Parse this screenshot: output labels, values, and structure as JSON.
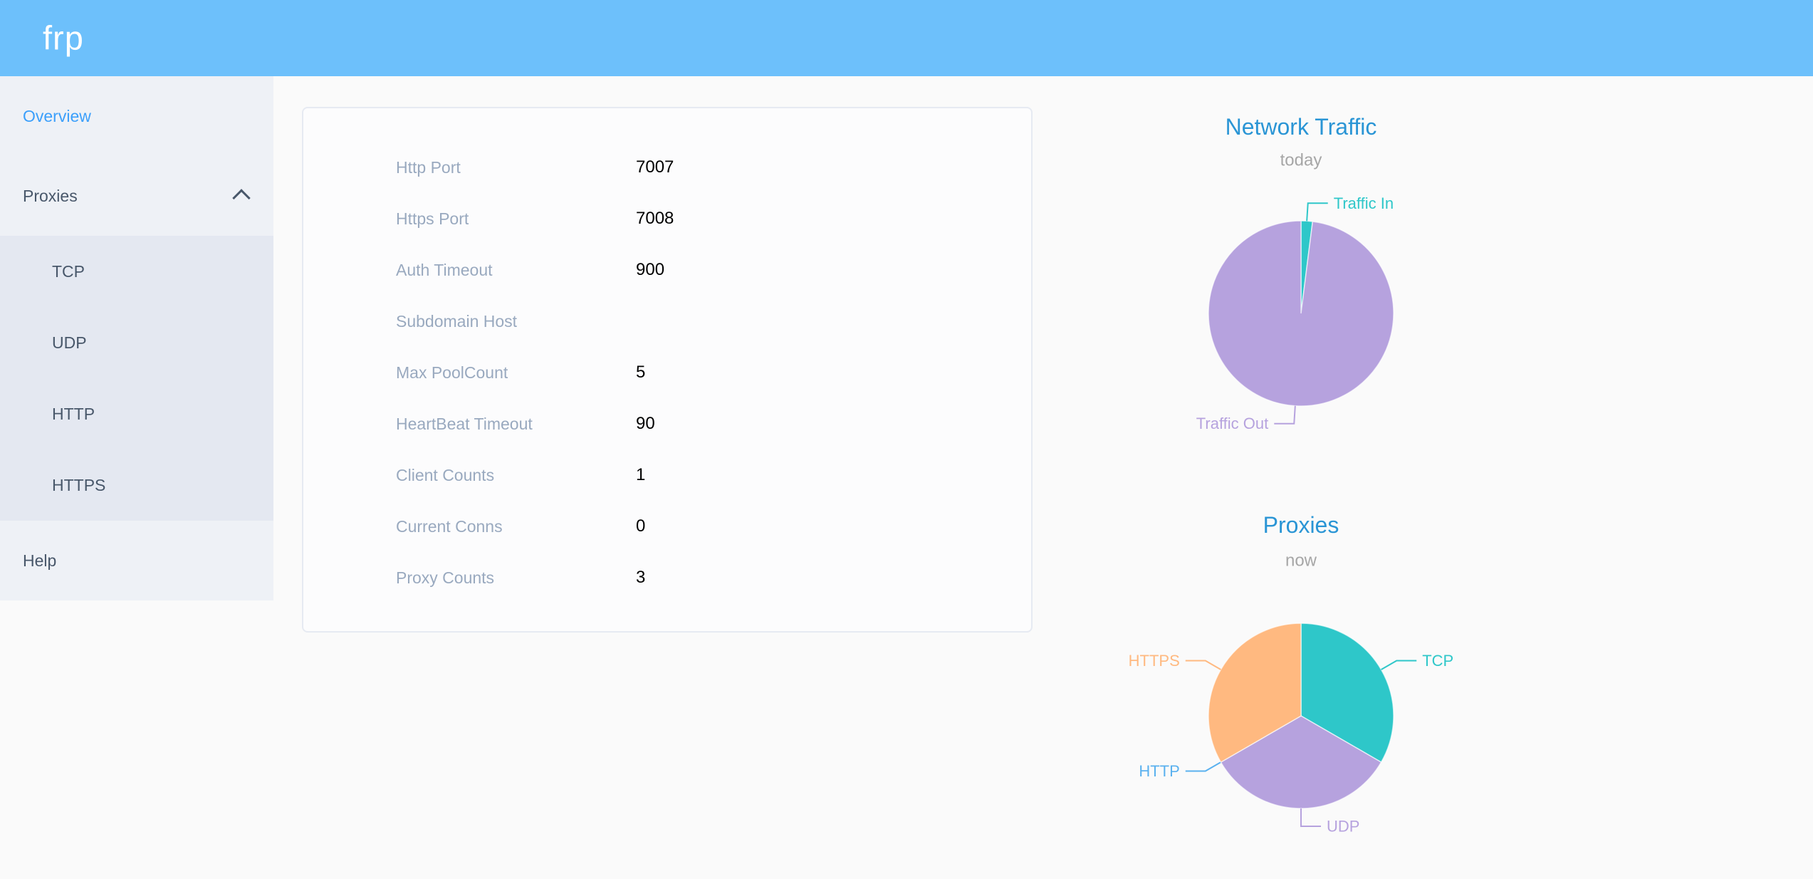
{
  "header": {
    "logo": "frp"
  },
  "sidebar": {
    "items": [
      {
        "label": "Overview",
        "active": true
      },
      {
        "label": "Proxies",
        "expanded": true,
        "children": [
          "TCP",
          "UDP",
          "HTTP",
          "HTTPS"
        ]
      },
      {
        "label": "Help"
      }
    ]
  },
  "server_info": {
    "rows": [
      {
        "label": "Http Port",
        "value": "7007"
      },
      {
        "label": "Https Port",
        "value": "7008"
      },
      {
        "label": "Auth Timeout",
        "value": "900"
      },
      {
        "label": "Subdomain Host",
        "value": ""
      },
      {
        "label": "Max PoolCount",
        "value": "5"
      },
      {
        "label": "HeartBeat Timeout",
        "value": "90"
      },
      {
        "label": "Client Counts",
        "value": "1"
      },
      {
        "label": "Current Conns",
        "value": "0"
      },
      {
        "label": "Proxy Counts",
        "value": "3"
      }
    ]
  },
  "chart_data": [
    {
      "type": "pie",
      "title": "Network Traffic",
      "subtitle": "today",
      "start_angle": 90,
      "clockwise": true,
      "labels": "outside",
      "values_are_percent_estimates": true,
      "slices": [
        {
          "name": "Traffic In",
          "percent": 2,
          "color": "#2ec7c9"
        },
        {
          "name": "Traffic Out",
          "percent": 98,
          "color": "#b6a2de"
        }
      ]
    },
    {
      "type": "pie",
      "title": "Proxies",
      "subtitle": "now",
      "start_angle": 90,
      "clockwise": true,
      "labels": "outside",
      "slices": [
        {
          "name": "TCP",
          "value": 1,
          "color": "#2ec7c9"
        },
        {
          "name": "UDP",
          "value": 1,
          "color": "#b6a2de",
          "label_side": "right"
        },
        {
          "name": "HTTP",
          "value": 0,
          "color": "#5ab1ef"
        },
        {
          "name": "HTTPS",
          "value": 1,
          "color": "#ffb980"
        }
      ]
    }
  ],
  "colors": {
    "header_bg": "#6dc0fb",
    "page_bg": "#fafafa",
    "sidebar_bg": "#eef1f6",
    "submenu_bg": "#e4e8f1",
    "menu_text": "#48576a",
    "menu_active": "#3b9ffb",
    "card_bg": "#fcfcfd",
    "card_border": "#e6eaf2",
    "label_text": "#99a9bf",
    "value_text": "#000000",
    "chart_title": "#2a95d5",
    "chart_subtitle": "#a6a6a6"
  }
}
